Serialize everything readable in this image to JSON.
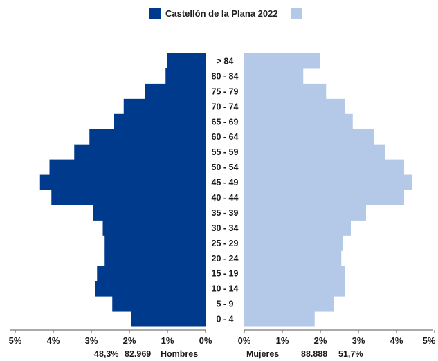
{
  "chart_data": {
    "type": "bar",
    "orientation": "horizontal-pyramid",
    "categories": [
      "0 - 4",
      "5 - 9",
      "10 - 14",
      "15 - 19",
      "20 - 24",
      "25 - 29",
      "30 - 34",
      "35 - 39",
      "40 - 44",
      "45 - 49",
      "50 - 54",
      "55 - 59",
      "60 - 64",
      "65 - 69",
      "70 - 74",
      "75 - 79",
      "80 - 84",
      "> 84"
    ],
    "series": [
      {
        "name": "Castellón de la Plana 2022",
        "color": "#003a8c",
        "values": [
          1.95,
          2.45,
          2.9,
          2.85,
          2.65,
          2.65,
          2.7,
          2.95,
          4.05,
          4.35,
          4.1,
          3.45,
          3.05,
          2.4,
          2.15,
          1.6,
          1.05,
          1.0
        ]
      },
      {
        "name": "",
        "color": "#b4c8e8",
        "values": [
          1.85,
          2.35,
          2.65,
          2.65,
          2.55,
          2.6,
          2.8,
          3.2,
          4.2,
          4.4,
          4.2,
          3.7,
          3.4,
          2.85,
          2.65,
          2.15,
          1.55,
          2.0
        ]
      }
    ],
    "xlim": [
      0,
      5
    ],
    "ticks_left": [
      "5%",
      "4%",
      "3%",
      "2%",
      "1%",
      "0%"
    ],
    "ticks_right": [
      "0%",
      "1%",
      "2%",
      "3%",
      "4%",
      "5%"
    ],
    "legend_position": "top-center",
    "grid": false,
    "summary": {
      "men_pct": "48,3%",
      "men_total": "82.969",
      "men_label": "Hombres",
      "women_label": "Mujeres",
      "women_total": "88.888",
      "women_pct": "51,7%"
    }
  }
}
